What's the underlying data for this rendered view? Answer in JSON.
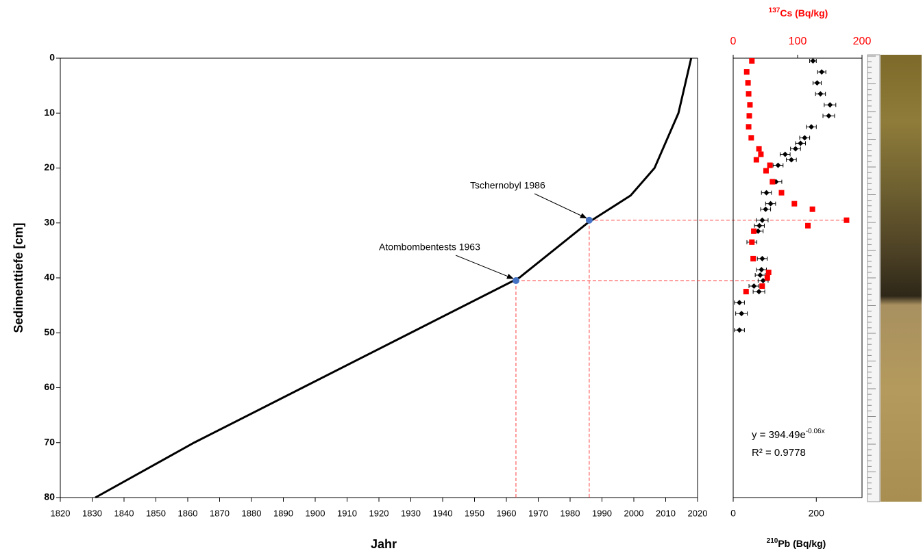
{
  "chart_data": [
    {
      "type": "line",
      "x_label": "Jahr",
      "y_label": "Sedimenttiefe [cm]",
      "xlim": [
        1820,
        2020
      ],
      "ylim": [
        0,
        80
      ],
      "y_inverted": true,
      "xticks": [
        1820,
        1830,
        1840,
        1850,
        1860,
        1870,
        1880,
        1890,
        1900,
        1910,
        1920,
        1930,
        1940,
        1950,
        1960,
        1970,
        1980,
        1990,
        2000,
        2010,
        2020
      ],
      "yticks": [
        0,
        10,
        20,
        30,
        40,
        50,
        60,
        70,
        80
      ],
      "series": [
        {
          "color": "#000000",
          "x": [
            2018,
            2014,
            2006.5,
            1999,
            1985.5,
            1964,
            1930,
            1896,
            1862,
            1831
          ],
          "values": [
            0,
            10,
            20,
            25,
            30,
            40,
            50,
            60,
            70,
            80
          ]
        }
      ],
      "markers": [
        {
          "x": 1986,
          "y": 29.5,
          "label": "Tschernobyl 1986"
        },
        {
          "x": 1963,
          "y": 40.5,
          "label": "Atombombentests 1963"
        }
      ],
      "marker_color": "#4472c4",
      "guide_color": "#ff4040"
    },
    {
      "type": "scatter",
      "x_label": {
        "sup": "210",
        "text": "Pb (Bq/kg)"
      },
      "x2_label": {
        "sup": "137",
        "text": "Cs (Bq/kg)"
      },
      "xlim": [
        0,
        310
      ],
      "xticks": [
        0,
        200
      ],
      "x2lim": [
        0,
        200
      ],
      "x2ticks": [
        0,
        100,
        200
      ],
      "x2_color": "#ff0000",
      "ylim": [
        0,
        80
      ],
      "y_inverted": true,
      "series": [
        {
          "color": "#000000",
          "marker": "diamond",
          "x": [
            192,
            213,
            202,
            210,
            233,
            230,
            188,
            172,
            162,
            150,
            125,
            140,
            108,
            103,
            80,
            90,
            78,
            70,
            63,
            60,
            45,
            70,
            68,
            65,
            72,
            50,
            62,
            15,
            20,
            15
          ],
          "values": [
            0.5,
            2.5,
            4.5,
            6.5,
            8.5,
            10.5,
            12.5,
            14.5,
            15.5,
            16.5,
            17.5,
            18.5,
            19.5,
            22.5,
            24.5,
            26.5,
            27.5,
            29.5,
            30.5,
            31.5,
            33.5,
            36.5,
            38.5,
            39.5,
            40.5,
            41.5,
            42.5,
            44.5,
            46.5,
            49.5
          ],
          "errors": [
            8,
            10,
            10,
            12,
            14,
            14,
            12,
            12,
            12,
            12,
            12,
            12,
            12,
            14,
            12,
            12,
            12,
            14,
            12,
            12,
            12,
            12,
            12,
            12,
            12,
            12,
            14,
            12,
            14,
            12
          ]
        },
        {
          "color": "#ff0000",
          "marker": "square",
          "axis": "x2",
          "x": [
            29,
            21,
            23,
            24,
            26,
            25,
            24,
            28,
            40,
            43,
            36,
            57,
            51,
            61,
            75,
            95,
            123,
            176,
            116,
            32,
            29,
            31,
            55,
            53,
            45,
            20
          ],
          "values": [
            0.5,
            2.5,
            4.5,
            6.5,
            8.5,
            10.5,
            12.5,
            14.5,
            16.5,
            17.5,
            18.5,
            19.5,
            20.5,
            22.5,
            24.5,
            26.5,
            27.5,
            29.5,
            30.5,
            31.5,
            33.5,
            36.5,
            39,
            40,
            41.5,
            42.5
          ]
        }
      ],
      "equation": {
        "base": "y = 394.49e",
        "exponent": "-0.06x"
      },
      "r_squared": "R² = 0.9778"
    }
  ]
}
